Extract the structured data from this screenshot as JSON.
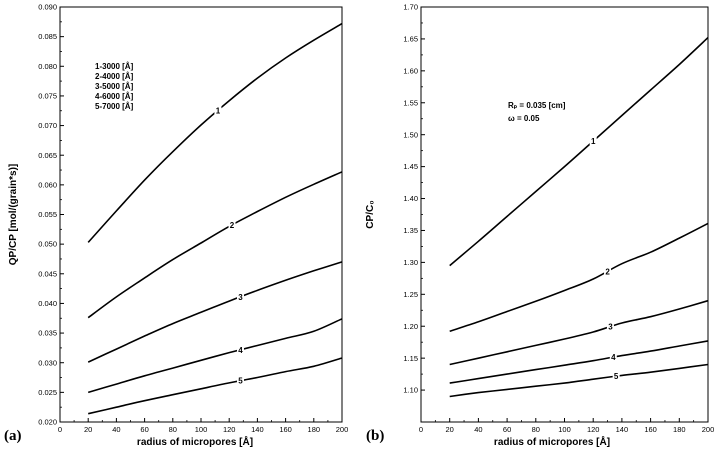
{
  "figure": {
    "panel_a_label": "(a)",
    "panel_b_label": "(b)"
  },
  "chart_data": [
    {
      "type": "line",
      "xlabel": "radius of micropores [Å]",
      "ylabel": "QP/CP [mol/(grain*s)]",
      "xlim": [
        0,
        200
      ],
      "ylim": [
        0.02,
        0.09
      ],
      "xticks": [
        0,
        20,
        40,
        60,
        80,
        100,
        120,
        140,
        160,
        180,
        200
      ],
      "yticks": [
        "0.020",
        "0.025",
        "0.030",
        "0.035",
        "0.040",
        "0.045",
        "0.050",
        "0.055",
        "0.060",
        "0.065",
        "0.070",
        "0.075",
        "0.080",
        "0.085",
        "0.090"
      ],
      "grid": false,
      "legend_lines": [
        "1-3000 [Å]",
        "2-4000 [Å]",
        "3-5000 [Å]",
        "4-6000 [Å]",
        "5-7000 [Å]"
      ],
      "legend_position": "upper-left",
      "series": [
        {
          "name": "1",
          "label_at": 112,
          "x": [
            20,
            40,
            60,
            80,
            100,
            120,
            140,
            160,
            180,
            200
          ],
          "y": [
            0.0503,
            0.0556,
            0.0608,
            0.0656,
            0.0701,
            0.0742,
            0.078,
            0.0814,
            0.0844,
            0.0872
          ]
        },
        {
          "name": "2",
          "label_at": 122,
          "x": [
            20,
            40,
            60,
            80,
            100,
            120,
            140,
            160,
            180,
            200
          ],
          "y": [
            0.0376,
            0.0411,
            0.0443,
            0.0474,
            0.0502,
            0.053,
            0.0555,
            0.0579,
            0.0601,
            0.0622
          ]
        },
        {
          "name": "3",
          "label_at": 128,
          "x": [
            20,
            40,
            60,
            80,
            100,
            120,
            140,
            160,
            180,
            200
          ],
          "y": [
            0.0301,
            0.0323,
            0.0345,
            0.0366,
            0.0385,
            0.0404,
            0.0422,
            0.0439,
            0.0455,
            0.047
          ]
        },
        {
          "name": "4",
          "label_at": 128,
          "x": [
            20,
            40,
            60,
            80,
            100,
            120,
            140,
            160,
            180,
            200
          ],
          "y": [
            0.025,
            0.0264,
            0.0278,
            0.0291,
            0.0304,
            0.0317,
            0.0329,
            0.0341,
            0.0353,
            0.0374
          ]
        },
        {
          "name": "5",
          "label_at": 128,
          "x": [
            20,
            40,
            60,
            80,
            100,
            120,
            140,
            160,
            180,
            200
          ],
          "y": [
            0.0214,
            0.0225,
            0.0236,
            0.0246,
            0.0256,
            0.0266,
            0.0275,
            0.0285,
            0.0294,
            0.0308
          ]
        }
      ]
    },
    {
      "type": "line",
      "xlabel": "radius of micropores [Å]",
      "ylabel": "CP/C₀",
      "xlim": [
        0,
        200
      ],
      "ylim": [
        1.05,
        1.7
      ],
      "xticks": [
        0,
        20,
        40,
        60,
        80,
        100,
        120,
        140,
        160,
        180,
        200
      ],
      "yticks": [
        "1.10",
        "1.15",
        "1.20",
        "1.25",
        "1.30",
        "1.35",
        "1.40",
        "1.45",
        "1.50",
        "1.55",
        "1.60",
        "1.65",
        "1.70"
      ],
      "grid": false,
      "annotations": [
        "Rₚ = 0.035 [cm]",
        "ω = 0.05"
      ],
      "series": [
        {
          "name": "1",
          "label_at": 120,
          "x": [
            20,
            40,
            60,
            80,
            100,
            120,
            140,
            160,
            180,
            200
          ],
          "y": [
            1.295,
            1.333,
            1.372,
            1.411,
            1.45,
            1.49,
            1.53,
            1.57,
            1.61,
            1.652
          ]
        },
        {
          "name": "2",
          "label_at": 130,
          "x": [
            20,
            40,
            60,
            80,
            100,
            120,
            140,
            160,
            180,
            200
          ],
          "y": [
            1.192,
            1.207,
            1.223,
            1.239,
            1.256,
            1.274,
            1.298,
            1.316,
            1.338,
            1.361
          ]
        },
        {
          "name": "3",
          "label_at": 132,
          "x": [
            20,
            40,
            60,
            80,
            100,
            120,
            140,
            160,
            180,
            200
          ],
          "y": [
            1.14,
            1.15,
            1.16,
            1.17,
            1.18,
            1.191,
            1.205,
            1.215,
            1.227,
            1.24
          ]
        },
        {
          "name": "4",
          "label_at": 134,
          "x": [
            20,
            40,
            60,
            80,
            100,
            120,
            140,
            160,
            180,
            200
          ],
          "y": [
            1.111,
            1.118,
            1.125,
            1.132,
            1.139,
            1.146,
            1.154,
            1.161,
            1.169,
            1.177
          ]
        },
        {
          "name": "5",
          "label_at": 136,
          "x": [
            20,
            40,
            60,
            80,
            100,
            120,
            140,
            160,
            180,
            200
          ],
          "y": [
            1.09,
            1.096,
            1.101,
            1.106,
            1.111,
            1.117,
            1.123,
            1.128,
            1.134,
            1.14
          ]
        }
      ]
    }
  ]
}
